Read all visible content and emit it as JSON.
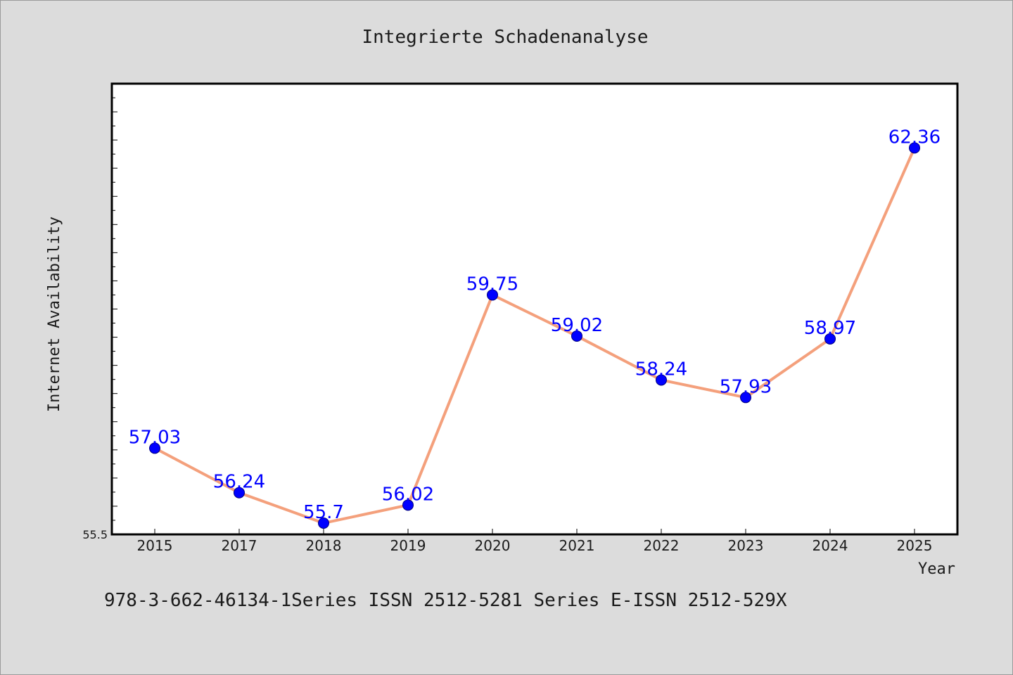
{
  "chart_data": {
    "type": "line",
    "title": "Integrierte Schadenanalyse",
    "xlabel": "Year",
    "ylabel": "Internet Availability",
    "categories": [
      "2015",
      "2017",
      "2018",
      "2019",
      "2020",
      "2021",
      "2022",
      "2023",
      "2024",
      "2025"
    ],
    "values": [
      57.03,
      56.24,
      55.7,
      56.02,
      59.75,
      59.02,
      58.24,
      57.93,
      58.97,
      62.36
    ],
    "data_labels": [
      "57.03",
      "56.24",
      "55.7",
      "56.02",
      "59.75",
      "59.02",
      "58.24",
      "57.93",
      "58.97",
      "62.36"
    ],
    "ylim": [
      55.5,
      63.5
    ],
    "y_min_label": "55.5",
    "grid": false,
    "line_color": "#f4a07c",
    "marker_color": "#0000ff",
    "label_color": "#0000ff"
  },
  "footer_text": "978-3-662-46134-1Series ISSN 2512-5281 Series E-ISSN 2512-529X"
}
